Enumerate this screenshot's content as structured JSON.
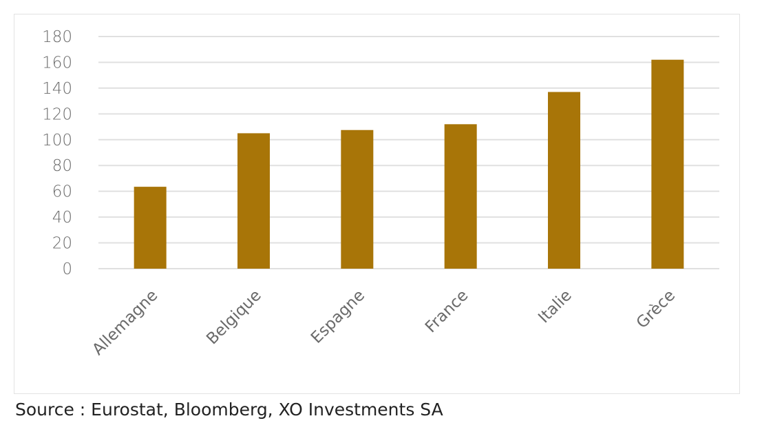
{
  "chart_data": {
    "type": "bar",
    "categories": [
      "Allemagne",
      "Belgique",
      "Espagne",
      "France",
      "Italie",
      "Grèce"
    ],
    "values": [
      63.5,
      105,
      107.5,
      112,
      137,
      162
    ],
    "title": "",
    "xlabel": "",
    "ylabel": "",
    "ylim": [
      0,
      180
    ],
    "yticks": [
      0,
      20,
      40,
      60,
      80,
      100,
      120,
      140,
      160,
      180
    ],
    "grid": true,
    "legend": "none",
    "bar_color": "#A87508"
  },
  "source": "Source : Eurostat, Bloomberg, XO Investments SA"
}
